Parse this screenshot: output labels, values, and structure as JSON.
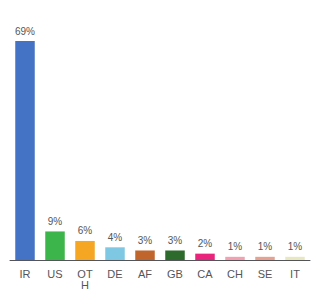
{
  "chart_data": {
    "type": "bar",
    "categories": [
      "IR",
      "US",
      "OT\nH",
      "DE",
      "AF",
      "GB",
      "CA",
      "CH",
      "SE",
      "IT"
    ],
    "values": [
      69,
      9,
      6,
      4,
      3,
      3,
      2,
      1,
      1,
      1
    ],
    "value_labels": [
      "69%",
      "9%",
      "6%",
      "4%",
      "3%",
      "3%",
      "2%",
      "1%",
      "1%",
      "1%"
    ],
    "colors": [
      "#4472C4",
      "#3CB54A",
      "#F5A623",
      "#7EC8E3",
      "#C0652B",
      "#2D6B2D",
      "#E8247C",
      "#F4A0B0",
      "#E8A090",
      "#E8E8C0"
    ],
    "ylim": [
      0,
      75
    ],
    "data_labels": true,
    "tick_labels": "x",
    "grid": false
  }
}
